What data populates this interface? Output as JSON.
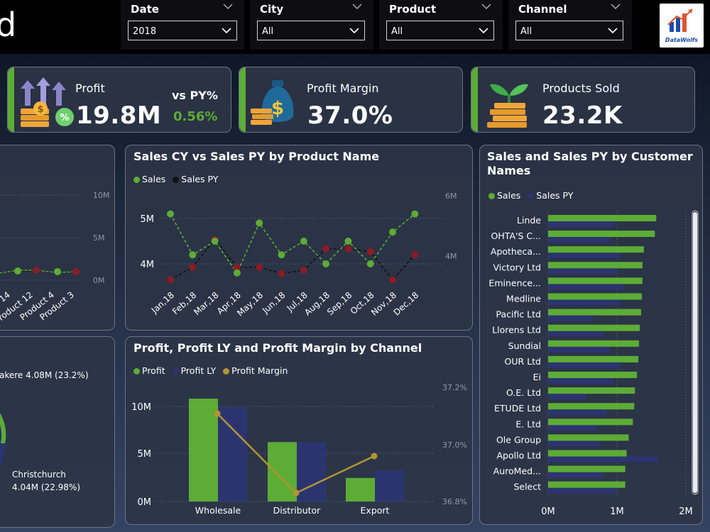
{
  "header": {
    "title_fragment": "d"
  },
  "slicers": [
    {
      "label": "Date",
      "value": "2018"
    },
    {
      "label": "City",
      "value": "All"
    },
    {
      "label": "Product",
      "value": "All"
    },
    {
      "label": "Channel",
      "value": "All"
    }
  ],
  "logo": {
    "text": "DataWolfs"
  },
  "kpis": {
    "profit": {
      "label": "Profit",
      "value": "19.8M",
      "vs_label": "vs PY%",
      "vs_value": "0.56%"
    },
    "margin": {
      "label": "Profit Margin",
      "value": "37.0%"
    },
    "sold": {
      "label": "Products Sold",
      "value": "23.2K"
    }
  },
  "colors": {
    "accent": "#5cac36",
    "sales": "#5cac36",
    "sales_py": "#2c3470",
    "dark_red": "#8a1c26",
    "margin_line": "#b39432"
  },
  "left_top_partial": {
    "y_ticks": [
      "10M",
      "5M",
      "0M"
    ],
    "x_labels": [
      "14",
      "Product 12",
      "Product 4",
      "Product 3"
    ]
  },
  "left_bottom_partial": {
    "labels": [
      "akere 4.08M (23.2%)",
      "Christchurch",
      "4.04M (22.98%)"
    ]
  },
  "sales_by_product": {
    "title": "Sales CY vs Sales PY by Product Name",
    "legend": [
      "Sales",
      "Sales PY"
    ],
    "y_left_ticks": [
      "5M",
      "4M"
    ],
    "y_right_ticks": [
      "6M",
      "4M"
    ],
    "x_labels": [
      "Jan,18",
      "Feb,18",
      "Mar,18",
      "Apr,18",
      "May,18",
      "Jun,18",
      "Jul,18",
      "Aug,18",
      "Sep,18",
      "Oct,18",
      "Nov,18",
      "Dec,18"
    ]
  },
  "profit_by_channel": {
    "title": "Profit, Profit LY and Profit Margin by Channel",
    "legend": [
      "Profit",
      "Profit LY",
      "Profit Margin"
    ],
    "y_left_ticks": [
      "10M",
      "5M",
      "0M"
    ],
    "y_right_ticks": [
      "37.2%",
      "37.0%",
      "36.8%"
    ],
    "categories": [
      "Wholesale",
      "Distributor",
      "Export"
    ]
  },
  "sales_by_customer": {
    "title_line1": "Sales and Sales PY by Customer",
    "title_line2": "Names",
    "legend": [
      "Sales",
      "Sales PY"
    ],
    "x_ticks": [
      "0M",
      "1M",
      "2M"
    ]
  },
  "chart_data": [
    {
      "type": "line",
      "title": "Sales CY vs Sales PY by Product Name",
      "x": [
        "Jan,18",
        "Feb,18",
        "Mar,18",
        "Apr,18",
        "May,18",
        "Jun,18",
        "Jul,18",
        "Aug,18",
        "Sep,18",
        "Oct,18",
        "Nov,18",
        "Dec,18"
      ],
      "series": [
        {
          "name": "Sales",
          "axis": "left",
          "values": [
            5.1,
            4.2,
            4.5,
            3.8,
            4.9,
            4.2,
            4.5,
            4.0,
            4.5,
            4.0,
            4.7,
            5.1
          ]
        },
        {
          "name": "Sales PY",
          "axis": "right",
          "values": [
            3.9,
            4.3,
            5.2,
            4.3,
            4.3,
            4.1,
            4.2,
            4.9,
            4.9,
            4.8,
            3.9,
            4.7
          ]
        }
      ],
      "ylim_left": [
        3.3,
        5.7
      ],
      "ylim_right": [
        3.7,
        6.2
      ],
      "legend_position": "top-left"
    },
    {
      "type": "bar",
      "title": "Profit, Profit LY and Profit Margin by Channel",
      "categories": [
        "Wholesale",
        "Distributor",
        "Export"
      ],
      "series": [
        {
          "name": "Profit",
          "values": [
            10.9,
            6.3,
            2.5
          ]
        },
        {
          "name": "Profit LY",
          "values": [
            10.0,
            6.3,
            3.3
          ]
        },
        {
          "name": "Profit Margin",
          "type": "line",
          "axis": "right",
          "unit": "%",
          "values": [
            37.11,
            36.83,
            36.96
          ]
        }
      ],
      "ylim_left": [
        0,
        12
      ],
      "ylim_right": [
        36.8,
        37.2
      ],
      "legend_position": "top-left"
    },
    {
      "type": "bar",
      "orientation": "horizontal",
      "title": "Sales and Sales PY by Customer Names",
      "categories": [
        "Linde",
        "OHTA'S C...",
        "Apotheca...",
        "Victory Ltd",
        "Eminence...",
        "Medline",
        "Pacific Ltd",
        "Llorens Ltd",
        "Sundial",
        "OUR Ltd",
        "Ei",
        "O.E. Ltd",
        "ETUDE Ltd",
        "E. Ltd",
        "Ole Group",
        "Apollo Ltd",
        "AuroMed...",
        "Select"
      ],
      "series": [
        {
          "name": "Sales",
          "values": [
            1.57,
            1.55,
            1.39,
            1.37,
            1.37,
            1.36,
            1.35,
            1.33,
            1.32,
            1.31,
            1.29,
            1.26,
            1.25,
            1.23,
            1.17,
            1.14,
            1.12,
            1.12
          ]
        },
        {
          "name": "Sales PY",
          "values": [
            0.95,
            0.9,
            1.05,
            1.0,
            1.1,
            1.05,
            0.65,
            0.8,
            0.9,
            1.05,
            0.95,
            0.55,
            0.85,
            0.7,
            0.75,
            1.6,
            0.8,
            1.0
          ]
        }
      ],
      "xlim": [
        0,
        2
      ],
      "legend_position": "top-left"
    }
  ]
}
